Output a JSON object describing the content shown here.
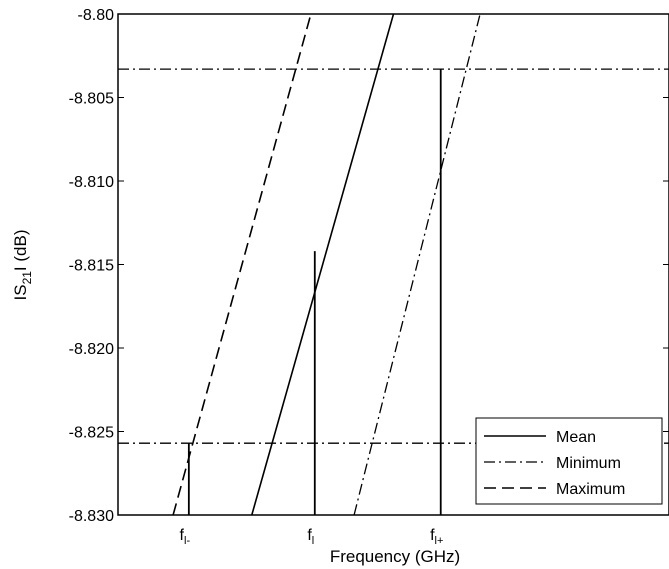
{
  "chart_data": {
    "type": "line",
    "title": "",
    "xlabel": "Frequency (GHz)",
    "ylabel": {
      "prefix": "IS",
      "sub": "21",
      "suffix": "I (dB)"
    },
    "ylim": [
      -8.83,
      -8.8
    ],
    "yticks": [
      "-8.80",
      "-8.805",
      "-8.810",
      "-8.815",
      "-8.820",
      "-8.825",
      "-8.830"
    ],
    "xticks": [
      {
        "main": "f",
        "sub": "l-",
        "x": 0.9
      },
      {
        "main": "f",
        "sub": "l",
        "x": 2.5
      },
      {
        "main": "f",
        "sub": "l+",
        "x": 4.1
      }
    ],
    "xlim": [
      0,
      7
    ],
    "grid": false,
    "legend": {
      "position": "bottom-right",
      "entries": [
        "Mean",
        "Minimum",
        "Maximum"
      ]
    },
    "series": [
      {
        "name": "Mean",
        "style": "solid",
        "x": [
          1.7,
          3.5
        ],
        "y": [
          -8.83,
          -8.8
        ]
      },
      {
        "name": "Minimum",
        "style": "dashdot",
        "x": [
          3.0,
          4.6
        ],
        "y": [
          -8.83,
          -8.8
        ]
      },
      {
        "name": "Maximum",
        "style": "dashed",
        "x": [
          0.7,
          2.45
        ],
        "y": [
          -8.83,
          -8.8
        ]
      }
    ],
    "hlines": [
      {
        "style": "dashdot",
        "y": -8.8033
      },
      {
        "style": "dashdot",
        "y": -8.8257
      }
    ],
    "vlines": [
      {
        "x": 0.9,
        "y0": -8.83,
        "y1": -8.8257
      },
      {
        "x": 2.5,
        "y0": -8.83,
        "y1": -8.8142
      },
      {
        "x": 4.1,
        "y0": -8.83,
        "y1": -8.8033
      }
    ]
  }
}
